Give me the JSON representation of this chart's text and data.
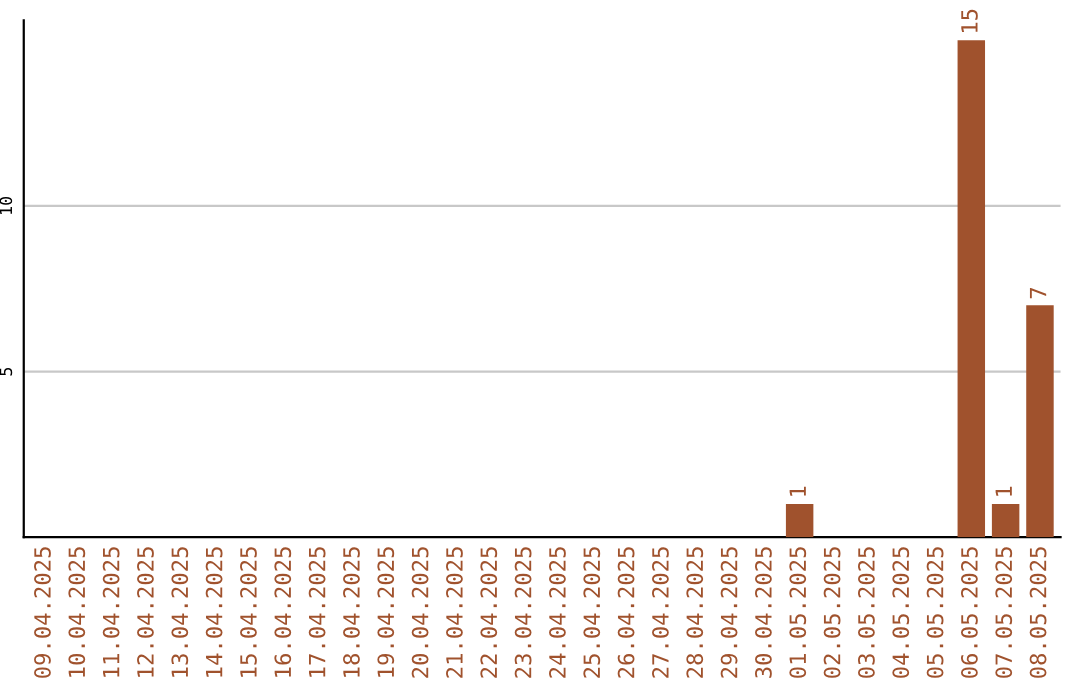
{
  "chart_data": {
    "type": "bar",
    "categories": [
      "09.04.2025",
      "10.04.2025",
      "11.04.2025",
      "12.04.2025",
      "13.04.2025",
      "14.04.2025",
      "15.04.2025",
      "16.04.2025",
      "17.04.2025",
      "18.04.2025",
      "19.04.2025",
      "20.04.2025",
      "21.04.2025",
      "22.04.2025",
      "23.04.2025",
      "24.04.2025",
      "25.04.2025",
      "26.04.2025",
      "27.04.2025",
      "28.04.2025",
      "29.04.2025",
      "30.04.2025",
      "01.05.2025",
      "02.05.2025",
      "03.05.2025",
      "04.05.2025",
      "05.05.2025",
      "06.05.2025",
      "07.05.2025",
      "08.05.2025"
    ],
    "values": [
      0,
      0,
      0,
      0,
      0,
      0,
      0,
      0,
      0,
      0,
      0,
      0,
      0,
      0,
      0,
      0,
      0,
      0,
      0,
      0,
      0,
      0,
      1,
      0,
      0,
      0,
      0,
      15,
      1,
      7
    ],
    "value_labels": [
      null,
      null,
      null,
      null,
      null,
      null,
      null,
      null,
      null,
      null,
      null,
      null,
      null,
      null,
      null,
      null,
      null,
      null,
      null,
      null,
      null,
      null,
      "1",
      null,
      null,
      null,
      null,
      "15",
      "1",
      "7"
    ],
    "color": "#a0522d",
    "ylim": [
      0,
      15.6
    ],
    "yticks": [
      5,
      10
    ],
    "grid": "y"
  }
}
